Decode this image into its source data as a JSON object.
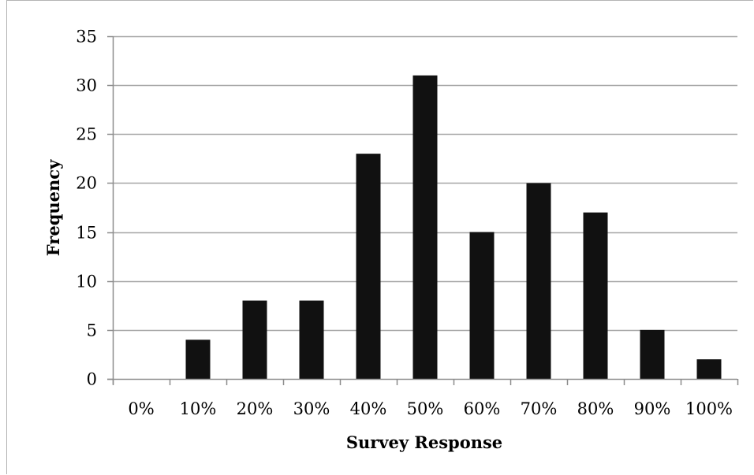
{
  "chart_data": {
    "type": "bar",
    "categories": [
      "0%",
      "10%",
      "20%",
      "30%",
      "40%",
      "50%",
      "60%",
      "70%",
      "80%",
      "90%",
      "100%"
    ],
    "values": [
      0,
      4,
      8,
      8,
      23,
      31,
      15,
      20,
      17,
      5,
      2
    ],
    "xlabel": "Survey Response",
    "ylabel": "Frequency",
    "ylim": [
      0,
      35
    ],
    "yticks": [
      0,
      5,
      10,
      15,
      20,
      25,
      30,
      35
    ],
    "grid": true,
    "legend": "none",
    "colors": {
      "bar": "#111111",
      "grid": "#a6a6a6",
      "axis": "#8c8c8c"
    }
  }
}
